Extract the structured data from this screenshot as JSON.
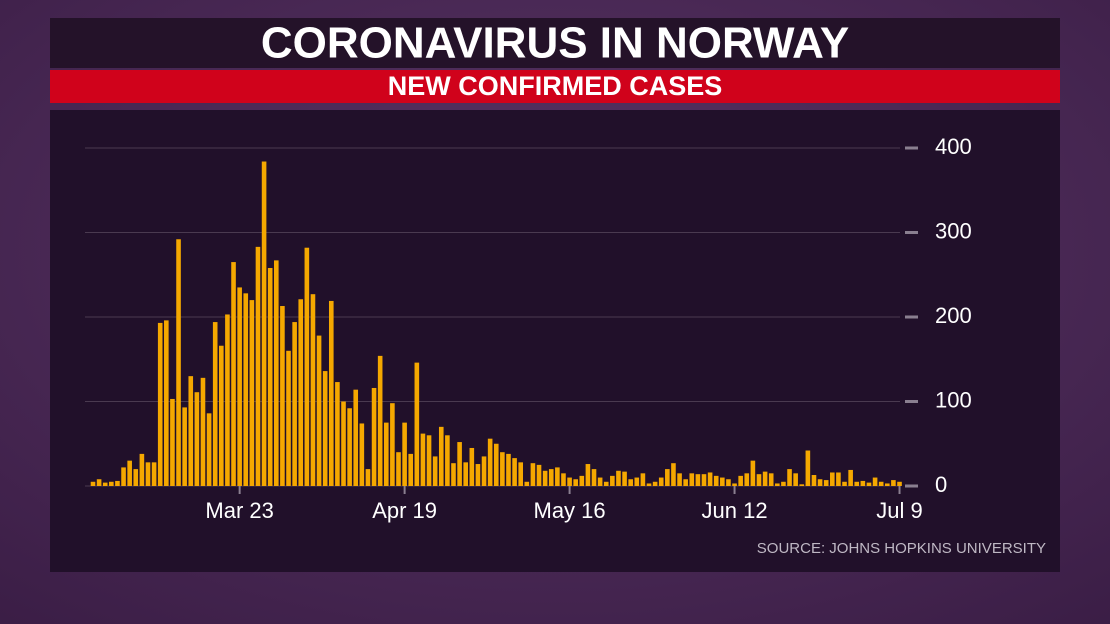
{
  "chart_data": {
    "type": "bar",
    "title": "CORONAVIRUS IN NORWAY",
    "subtitle": "NEW CONFIRMED CASES",
    "source": "SOURCE: JOHNS HOPKINS UNIVERSITY",
    "categories": [
      null,
      null,
      null,
      null,
      null,
      null,
      null,
      null,
      null,
      null,
      null,
      null,
      null,
      null,
      null,
      null,
      null,
      null,
      null,
      null,
      null,
      null,
      null,
      null,
      "Mar 23",
      null,
      null,
      null,
      null,
      null,
      null,
      null,
      null,
      null,
      null,
      null,
      null,
      null,
      null,
      null,
      null,
      null,
      null,
      null,
      null,
      null,
      null,
      null,
      null,
      null,
      null,
      "Apr 19",
      null,
      null,
      null,
      null,
      null,
      null,
      null,
      null,
      null,
      null,
      null,
      null,
      null,
      null,
      null,
      null,
      null,
      null,
      null,
      null,
      null,
      null,
      null,
      null,
      null,
      null,
      "May 16",
      null,
      null,
      null,
      null,
      null,
      null,
      null,
      null,
      null,
      null,
      null,
      null,
      null,
      null,
      null,
      null,
      null,
      null,
      null,
      null,
      null,
      null,
      null,
      null,
      null,
      null,
      "Jun 12",
      null,
      null,
      null,
      null,
      null,
      null,
      null,
      null,
      null,
      null,
      null,
      null,
      null,
      null,
      null,
      null,
      null,
      null,
      null,
      null,
      null,
      null,
      null,
      null,
      null,
      null,
      "Jul 9"
    ],
    "values": [
      5,
      8,
      4,
      5,
      6,
      22,
      30,
      20,
      38,
      28,
      28,
      193,
      196,
      103,
      292,
      93,
      130,
      111,
      128,
      86,
      194,
      166,
      203,
      265,
      235,
      228,
      220,
      283,
      384,
      258,
      267,
      213,
      160,
      194,
      221,
      282,
      227,
      178,
      136,
      219,
      123,
      100,
      92,
      114,
      74,
      20,
      116,
      154,
      75,
      98,
      40,
      75,
      38,
      146,
      62,
      60,
      35,
      70,
      60,
      27,
      52,
      28,
      45,
      26,
      35,
      56,
      50,
      40,
      38,
      33,
      28,
      5,
      27,
      25,
      18,
      20,
      22,
      15,
      10,
      8,
      12,
      26,
      20,
      10,
      5,
      12,
      18,
      17,
      8,
      10,
      15,
      3,
      5,
      10,
      20,
      27,
      15,
      8,
      15,
      14,
      14,
      16,
      12,
      10,
      8,
      3,
      12,
      15,
      30,
      14,
      17,
      15,
      3,
      5,
      20,
      15,
      2,
      42,
      13,
      8,
      7,
      16,
      16,
      5,
      19,
      5,
      6,
      4,
      10,
      5,
      3,
      7,
      5
    ],
    "color": "#f5a800",
    "ylim": [
      0,
      400
    ],
    "yticks": [
      0,
      100,
      200,
      300,
      400
    ],
    "grid": true
  }
}
